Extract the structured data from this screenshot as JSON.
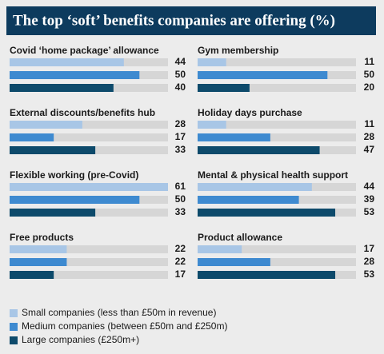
{
  "chart_data": {
    "type": "bar",
    "title": "The top ‘soft’ benefits companies are offering (%)",
    "categories": [
      "Covid ‘home package’ allowance",
      "Gym membership",
      "External discounts/benefits hub",
      "Holiday days purchase",
      "Flexible working (pre-Covid)",
      "Mental & physical health support",
      "Free products",
      "Product allowance"
    ],
    "series": [
      {
        "name": "Small companies (less than £50m in revenue)",
        "color": "#a8c6e6",
        "values": [
          44,
          11,
          28,
          11,
          61,
          44,
          22,
          17
        ]
      },
      {
        "name": "Medium companies (between £50m and £250m)",
        "color": "#3e8ad0",
        "values": [
          50,
          50,
          17,
          28,
          50,
          39,
          22,
          28
        ]
      },
      {
        "name": "Large companies (£250m+)",
        "color": "#0d4a6b",
        "values": [
          40,
          20,
          33,
          47,
          33,
          53,
          17,
          53
        ]
      }
    ],
    "xlim": [
      0,
      61
    ],
    "track_color": "#d6d6d6"
  }
}
